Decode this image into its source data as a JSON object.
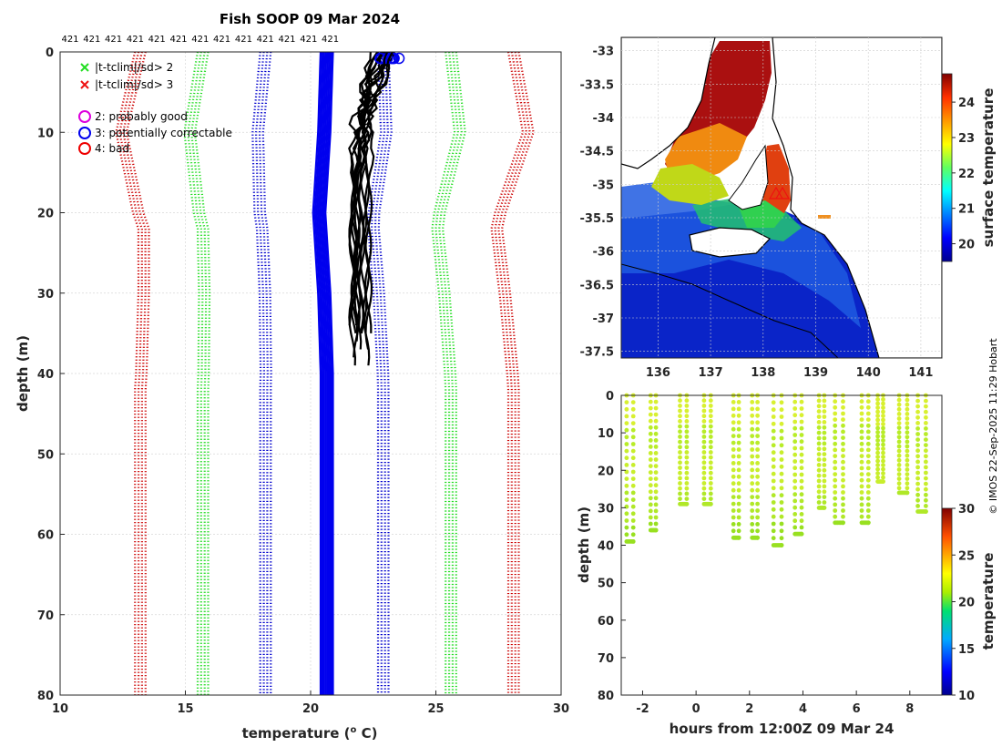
{
  "chart_data": [
    {
      "type": "line",
      "panel": "profiles",
      "title": "Fish SOOP 09 Mar 2024",
      "xlabel": "temperature (",
      "xlabel_sup": "o",
      "xlabel_end": " C)",
      "ylabel": "depth (m)",
      "xlim": [
        10,
        30
      ],
      "ylim": [
        0,
        80
      ],
      "xticks": [
        "10",
        "15",
        "20",
        "25",
        "30"
      ],
      "yticks": [
        "0",
        "10",
        "20",
        "30",
        "40",
        "50",
        "60",
        "70",
        "80"
      ],
      "top_counts": [
        "421",
        "421",
        "421",
        "421",
        "421",
        "421",
        "421",
        "421",
        "421",
        "421",
        "421",
        "421",
        "421"
      ],
      "legend": [
        {
          "marker": "x",
          "color": "#22dd22",
          "label": "|t-tclim|/sd> 2"
        },
        {
          "marker": "x",
          "color": "#ee1111",
          "label": "|t-tclim|/sd> 3"
        },
        {
          "marker": "o",
          "color": "#dd00dd",
          "label": "2: probably good"
        },
        {
          "marker": "o",
          "color": "#0000ee",
          "label": "3: potentially correctable"
        },
        {
          "marker": "o",
          "color": "#ee0000",
          "label": "4: bad"
        }
      ],
      "envelopes": [
        {
          "name": "clim -3sd",
          "color": "#cc0000",
          "offset": -7.3
        },
        {
          "name": "clim -2sd",
          "color": "#22dd22",
          "offset": -4.8
        },
        {
          "name": "clim -1sd",
          "color": "#0000cc",
          "offset": -2.3
        },
        {
          "name": "clim +1sd",
          "color": "#0000cc",
          "offset": 2.4
        },
        {
          "name": "clim +2sd",
          "color": "#22dd22",
          "offset": 5.1
        },
        {
          "name": "clim +3sd",
          "color": "#cc0000",
          "offset": 7.6
        }
      ],
      "clim_mean": {
        "depth": [
          0,
          10,
          20,
          25,
          30,
          40,
          50,
          60,
          70,
          80
        ],
        "temp": [
          20.5,
          20.4,
          20.2,
          20.3,
          20.4,
          20.5,
          20.5,
          20.5,
          20.5,
          20.5
        ]
      },
      "profile_count": 13,
      "profile_temp_range": [
        21.2,
        23.5
      ],
      "profile_max_depth": 40
    },
    {
      "type": "heatmap",
      "panel": "map",
      "colorbar_label": "surface temperature",
      "lon_ticks": [
        "136",
        "137",
        "138",
        "139",
        "140",
        "141"
      ],
      "lat_ticks": [
        "-33",
        "-33.5",
        "-34",
        "-34.5",
        "-35",
        "-35.5",
        "-36",
        "-36.5",
        "-37",
        "-37.5"
      ],
      "xlim": [
        135.3,
        141.4
      ],
      "ylim": [
        -37.6,
        -32.8
      ],
      "colorbar_ticks": [
        "20",
        "21",
        "22",
        "23",
        "24"
      ],
      "clim": [
        19.5,
        24.8
      ],
      "track_position": [
        138.3,
        -35.1
      ]
    },
    {
      "type": "scatter",
      "panel": "depth-time",
      "xlabel": "hours from 12:00Z 09 Mar 24",
      "ylabel": "depth (m)",
      "colorbar_label": "temperature",
      "xticks": [
        "-2",
        "0",
        "2",
        "4",
        "6",
        "8"
      ],
      "yticks": [
        "0",
        "10",
        "20",
        "30",
        "40",
        "50",
        "60",
        "70",
        "80"
      ],
      "colorbar_ticks": [
        "10",
        "15",
        "20",
        "25",
        "30"
      ],
      "xlim": [
        -2.8,
        9.2
      ],
      "ylim": [
        0,
        80
      ],
      "clim": [
        10,
        30
      ],
      "casts": [
        {
          "t0": -2.6,
          "dur": 0.5,
          "max": 39
        },
        {
          "t0": -1.7,
          "dur": 0.4,
          "max": 36
        },
        {
          "t0": -0.6,
          "dur": 0.5,
          "max": 29
        },
        {
          "t0": 0.3,
          "dur": 0.5,
          "max": 29
        },
        {
          "t0": 1.4,
          "dur": 0.4,
          "max": 38
        },
        {
          "t0": 2.1,
          "dur": 0.4,
          "max": 38
        },
        {
          "t0": 2.9,
          "dur": 0.6,
          "max": 40
        },
        {
          "t0": 3.7,
          "dur": 0.5,
          "max": 37
        },
        {
          "t0": 4.6,
          "dur": 0.4,
          "max": 30
        },
        {
          "t0": 5.2,
          "dur": 0.6,
          "max": 34
        },
        {
          "t0": 6.2,
          "dur": 0.5,
          "max": 34
        },
        {
          "t0": 6.8,
          "dur": 0.4,
          "max": 23
        },
        {
          "t0": 7.6,
          "dur": 0.6,
          "max": 26
        },
        {
          "t0": 8.3,
          "dur": 0.6,
          "max": 31
        }
      ]
    }
  ],
  "watermark": "© IMOS 22-Sep-2025 11:29 Hobart"
}
